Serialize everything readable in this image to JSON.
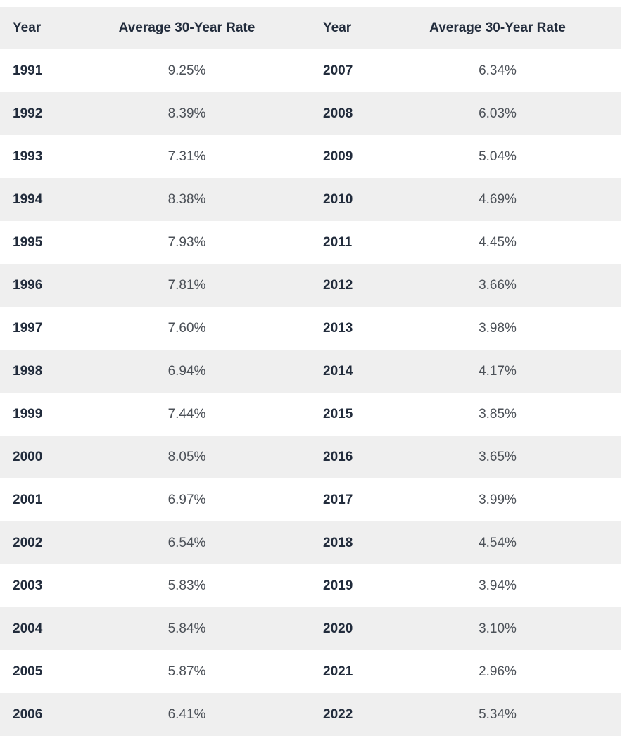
{
  "table": {
    "headers": [
      "Year",
      "Average 30-Year Rate",
      "Year",
      "Average 30-Year Rate"
    ],
    "rows": [
      [
        "1991",
        "9.25%",
        "2007",
        "6.34%"
      ],
      [
        "1992",
        "8.39%",
        "2008",
        "6.03%"
      ],
      [
        "1993",
        "7.31%",
        "2009",
        "5.04%"
      ],
      [
        "1994",
        "8.38%",
        "2010",
        "4.69%"
      ],
      [
        "1995",
        "7.93%",
        "2011",
        "4.45%"
      ],
      [
        "1996",
        "7.81%",
        "2012",
        "3.66%"
      ],
      [
        "1997",
        "7.60%",
        "2013",
        "3.98%"
      ],
      [
        "1998",
        "6.94%",
        "2014",
        "4.17%"
      ],
      [
        "1999",
        "7.44%",
        "2015",
        "3.85%"
      ],
      [
        "2000",
        "8.05%",
        "2016",
        "3.65%"
      ],
      [
        "2001",
        "6.97%",
        "2017",
        "3.99%"
      ],
      [
        "2002",
        "6.54%",
        "2018",
        "4.54%"
      ],
      [
        "2003",
        "5.83%",
        "2019",
        "3.94%"
      ],
      [
        "2004",
        "5.84%",
        "2020",
        "3.10%"
      ],
      [
        "2005",
        "5.87%",
        "2021",
        "2.96%"
      ],
      [
        "2006",
        "6.41%",
        "2022",
        "5.34%"
      ]
    ]
  },
  "colors": {
    "header_bg": "#efefef",
    "stripe_row_bg": "#efefef",
    "white_row_bg": "#ffffff",
    "year_text": "#222c3c",
    "rate_text": "#4c5158"
  },
  "chart_data": {
    "type": "table",
    "columns": [
      "Year",
      "Average 30-Year Rate"
    ],
    "rows": [
      [
        "1991",
        "9.25%"
      ],
      [
        "1992",
        "8.39%"
      ],
      [
        "1993",
        "7.31%"
      ],
      [
        "1994",
        "8.38%"
      ],
      [
        "1995",
        "7.93%"
      ],
      [
        "1996",
        "7.81%"
      ],
      [
        "1997",
        "7.60%"
      ],
      [
        "1998",
        "6.94%"
      ],
      [
        "1999",
        "7.44%"
      ],
      [
        "2000",
        "8.05%"
      ],
      [
        "2001",
        "6.97%"
      ],
      [
        "2002",
        "6.54%"
      ],
      [
        "2003",
        "5.83%"
      ],
      [
        "2004",
        "5.84%"
      ],
      [
        "2005",
        "5.87%"
      ],
      [
        "2006",
        "6.41%"
      ],
      [
        "2007",
        "6.34%"
      ],
      [
        "2008",
        "6.03%"
      ],
      [
        "2009",
        "5.04%"
      ],
      [
        "2010",
        "4.69%"
      ],
      [
        "2011",
        "4.45%"
      ],
      [
        "2012",
        "3.66%"
      ],
      [
        "2013",
        "3.98%"
      ],
      [
        "2014",
        "4.17%"
      ],
      [
        "2015",
        "3.85%"
      ],
      [
        "2016",
        "3.65%"
      ],
      [
        "2017",
        "3.99%"
      ],
      [
        "2018",
        "4.54%"
      ],
      [
        "2019",
        "3.94%"
      ],
      [
        "2020",
        "3.10%"
      ],
      [
        "2021",
        "2.96%"
      ],
      [
        "2022",
        "5.34%"
      ]
    ],
    "layout": {
      "two_column_pairs": true,
      "striped_rows": true,
      "header_background": "#efefef"
    }
  }
}
